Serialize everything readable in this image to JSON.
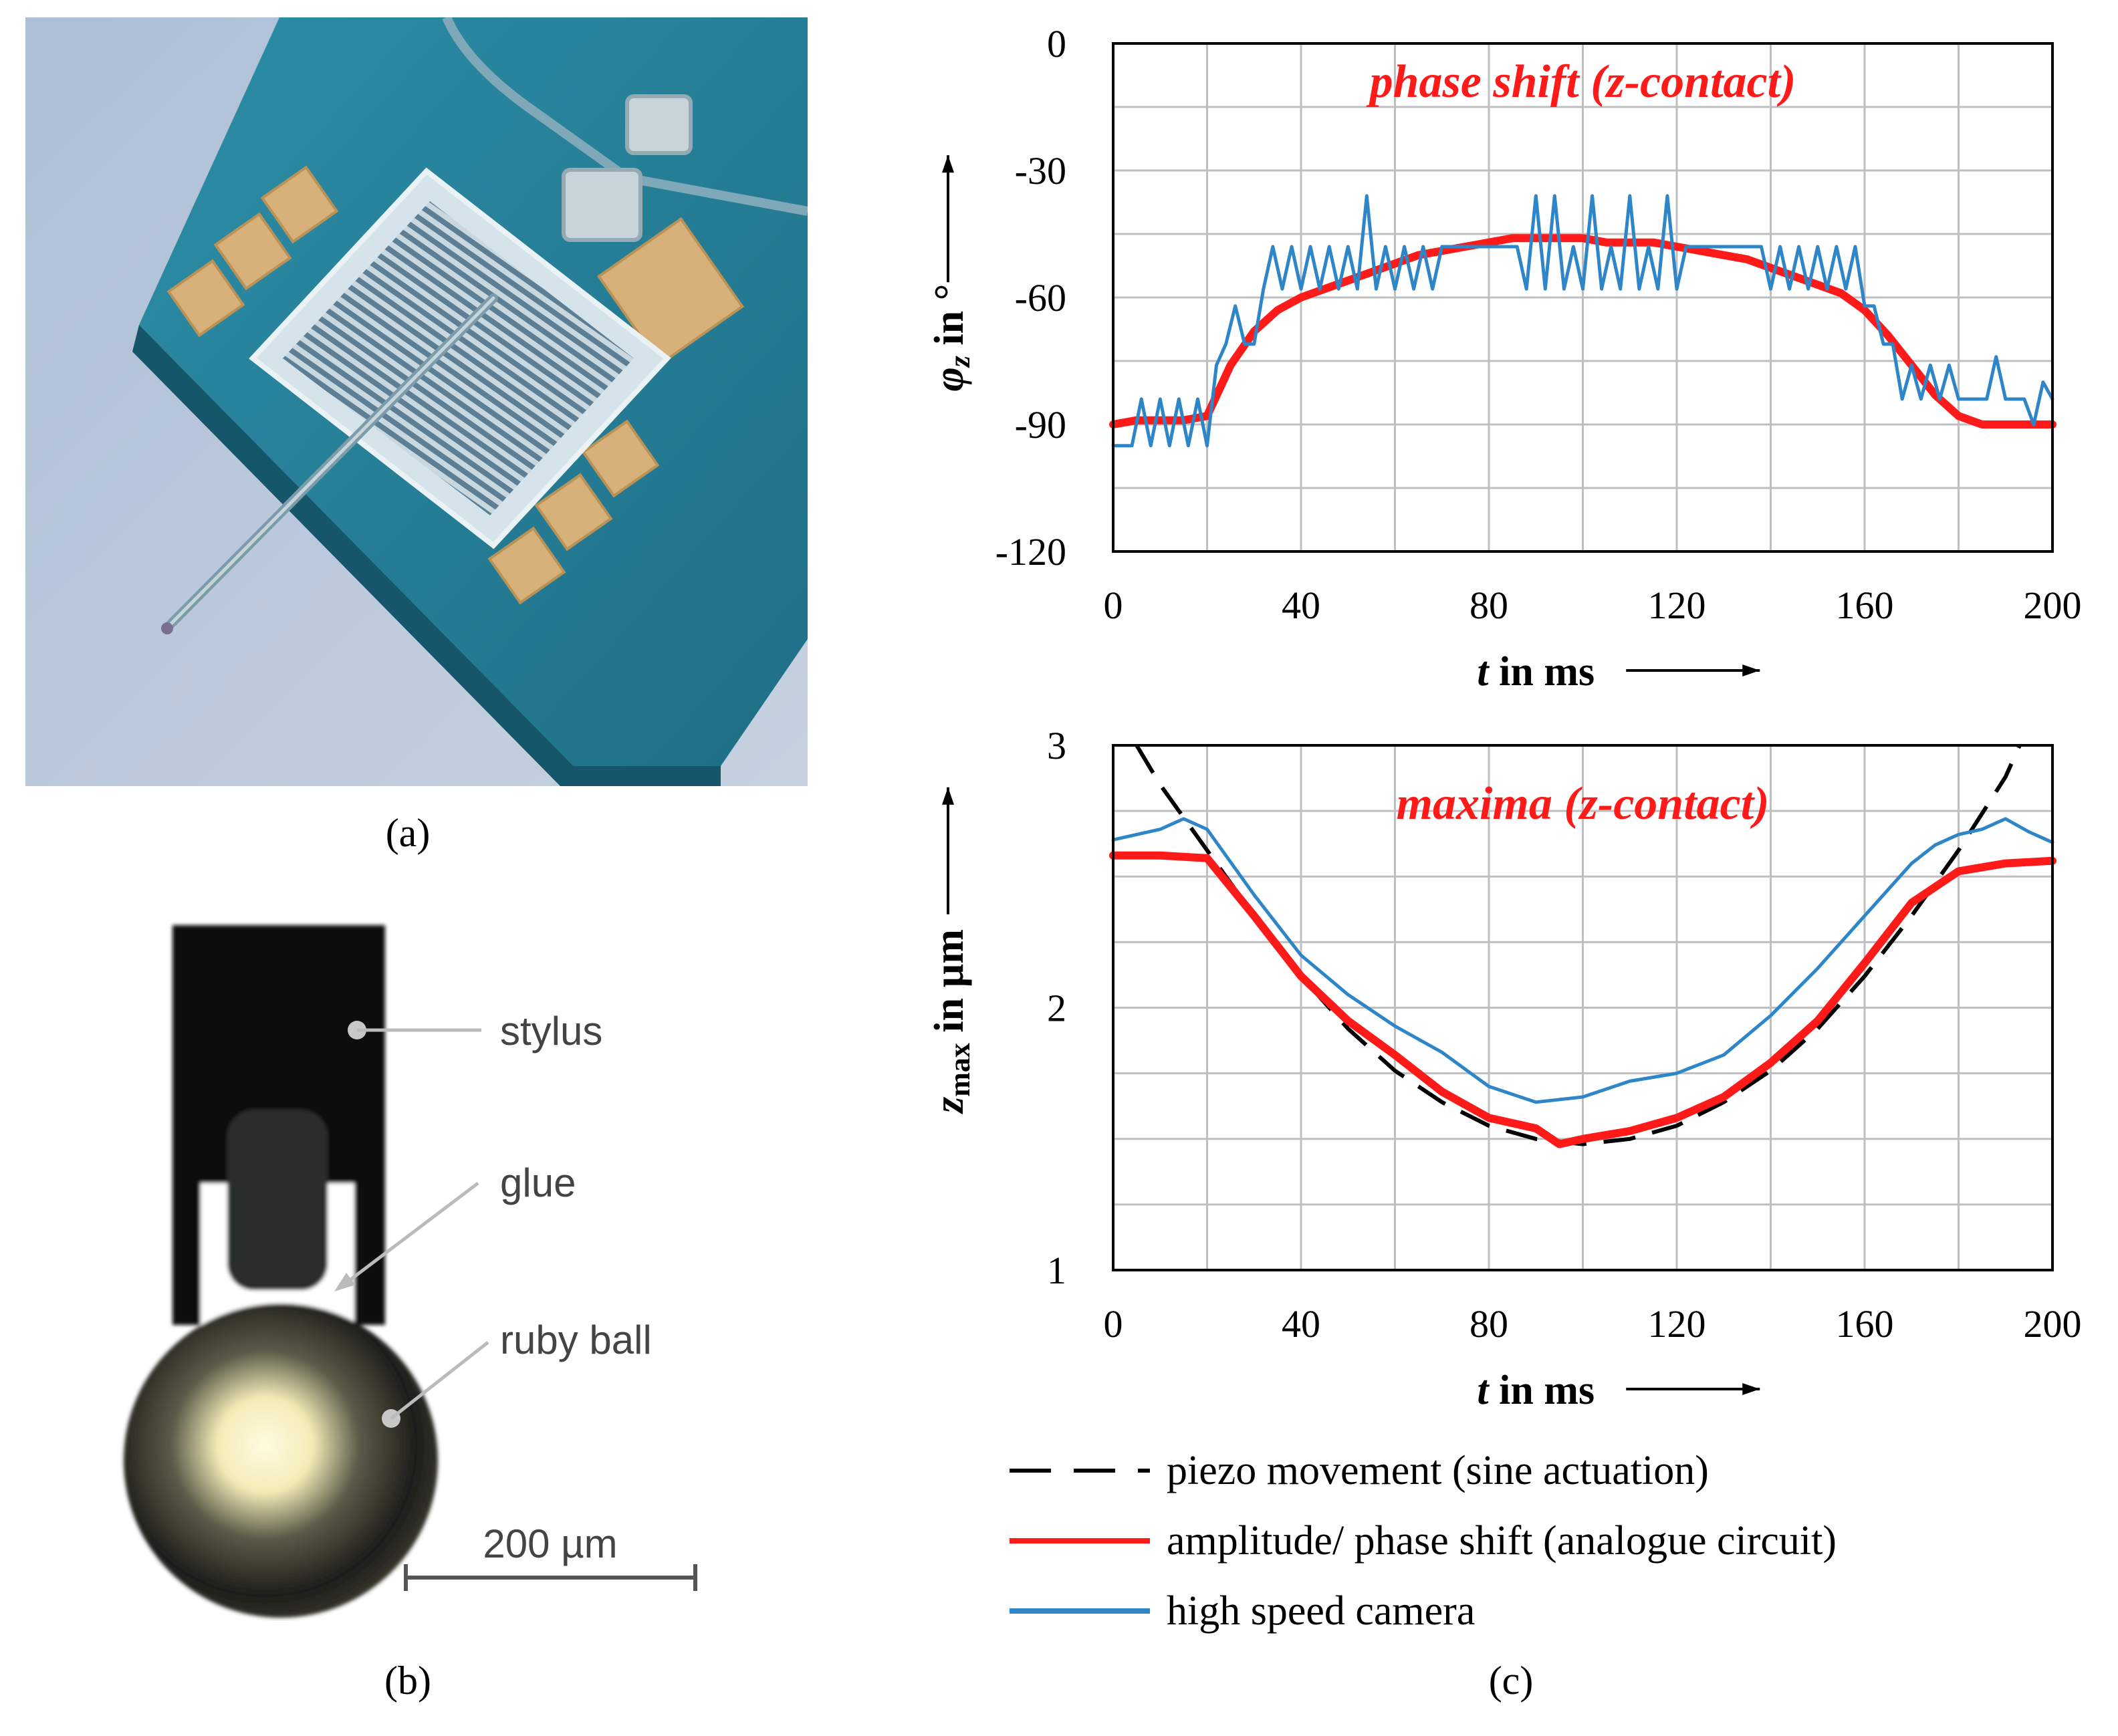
{
  "panels": {
    "a": "(a)",
    "b": "(b)",
    "c": "(c)"
  },
  "photo_b": {
    "labels": {
      "stylus": "stylus",
      "glue": "glue",
      "ruby": "ruby ball",
      "scale": "200 µm"
    }
  },
  "chart_data": [
    {
      "type": "line",
      "title": "phase shift (z-contact)",
      "xlabel_var": "t",
      "xlabel_rest": " in ms",
      "ylabel_var": "φ",
      "ylabel_sub": "z",
      "ylabel_rest": " in °",
      "xlim": [
        0,
        200
      ],
      "ylim": [
        -120,
        0
      ],
      "xticks": [
        "0",
        "40",
        "80",
        "120",
        "160",
        "200"
      ],
      "yticks": [
        "0",
        "-30",
        "-60",
        "-90",
        "-120"
      ],
      "grid": true,
      "series": [
        {
          "name": "amplitude/ phase shift (analogue circuit)",
          "color": "#ff1a1a",
          "x": [
            0,
            5,
            10,
            15,
            20,
            25,
            30,
            35,
            40,
            45,
            50,
            55,
            60,
            65,
            70,
            75,
            80,
            85,
            90,
            95,
            100,
            105,
            110,
            115,
            120,
            125,
            130,
            135,
            140,
            145,
            150,
            155,
            160,
            165,
            170,
            175,
            180,
            185,
            190,
            195,
            200
          ],
          "y": [
            -90,
            -89,
            -89,
            -89,
            -88,
            -76,
            -68,
            -63,
            -60,
            -58,
            -56,
            -54,
            -52,
            -50,
            -49,
            -48,
            -47,
            -46,
            -46,
            -46,
            -46,
            -47,
            -47,
            -47,
            -48,
            -49,
            -50,
            -51,
            -53,
            -55,
            -57,
            -59,
            -63,
            -69,
            -76,
            -83,
            -88,
            -90,
            -90,
            -90,
            -90
          ]
        },
        {
          "name": "high speed camera",
          "color": "#2e86c9",
          "x": [
            0,
            4,
            6,
            8,
            10,
            12,
            14,
            16,
            18,
            20,
            22,
            24,
            26,
            28,
            30,
            32,
            34,
            36,
            38,
            40,
            42,
            44,
            46,
            48,
            50,
            52,
            54,
            56,
            58,
            60,
            62,
            64,
            66,
            68,
            70,
            74,
            78,
            82,
            86,
            88,
            90,
            92,
            94,
            96,
            98,
            100,
            102,
            104,
            106,
            108,
            110,
            112,
            114,
            116,
            118,
            120,
            122,
            124,
            126,
            128,
            130,
            134,
            138,
            140,
            142,
            144,
            146,
            148,
            150,
            152,
            154,
            156,
            158,
            160,
            162,
            164,
            166,
            168,
            170,
            172,
            174,
            176,
            178,
            180,
            182,
            184,
            186,
            188,
            190,
            192,
            194,
            196,
            198,
            200
          ],
          "y": [
            -95,
            -95,
            -84,
            -95,
            -84,
            -95,
            -84,
            -95,
            -84,
            -95,
            -76,
            -71,
            -62,
            -71,
            -71,
            -58,
            -48,
            -58,
            -48,
            -58,
            -48,
            -58,
            -48,
            -58,
            -48,
            -58,
            -36,
            -58,
            -48,
            -58,
            -48,
            -58,
            -48,
            -58,
            -48,
            -48,
            -48,
            -48,
            -48,
            -58,
            -36,
            -58,
            -36,
            -58,
            -48,
            -58,
            -36,
            -58,
            -48,
            -58,
            -36,
            -58,
            -48,
            -58,
            -36,
            -58,
            -48,
            -48,
            -48,
            -48,
            -48,
            -48,
            -48,
            -58,
            -48,
            -58,
            -48,
            -58,
            -48,
            -58,
            -48,
            -58,
            -48,
            -62,
            -62,
            -71,
            -71,
            -84,
            -76,
            -84,
            -76,
            -84,
            -76,
            -84,
            -84,
            -84,
            -84,
            -74,
            -84,
            -84,
            -84,
            -90,
            -80,
            -84
          ]
        }
      ]
    },
    {
      "type": "line",
      "title": "maxima (z-contact)",
      "xlabel_var": "t",
      "xlabel_rest": " in ms",
      "ylabel_var": "z",
      "ylabel_sub": "max",
      "ylabel_rest": " in µm",
      "xlim": [
        0,
        200
      ],
      "ylim": [
        1,
        3
      ],
      "xticks": [
        "0",
        "40",
        "80",
        "120",
        "160",
        "200"
      ],
      "yticks": [
        "3",
        "2",
        "1"
      ],
      "grid": true,
      "series": [
        {
          "name": "piezo movement (sine actuation)",
          "color": "#000000",
          "dashed": true,
          "x": [
            5,
            10,
            20,
            30,
            40,
            50,
            60,
            70,
            80,
            90,
            100,
            110,
            120,
            130,
            140,
            150,
            160,
            170,
            180,
            190,
            193
          ],
          "y": [
            3.0,
            2.85,
            2.6,
            2.35,
            2.12,
            1.92,
            1.76,
            1.64,
            1.55,
            1.5,
            1.48,
            1.5,
            1.55,
            1.64,
            1.76,
            1.92,
            2.12,
            2.35,
            2.6,
            2.88,
            3.0
          ]
        },
        {
          "name": "amplitude/ phase shift (analogue circuit)",
          "color": "#ff1a1a",
          "x": [
            0,
            10,
            20,
            30,
            40,
            50,
            60,
            70,
            80,
            90,
            95,
            100,
            110,
            120,
            130,
            140,
            150,
            160,
            170,
            180,
            190,
            200
          ],
          "y": [
            2.58,
            2.58,
            2.57,
            2.35,
            2.12,
            1.95,
            1.82,
            1.68,
            1.58,
            1.54,
            1.48,
            1.5,
            1.53,
            1.58,
            1.66,
            1.79,
            1.95,
            2.17,
            2.4,
            2.52,
            2.55,
            2.56
          ]
        },
        {
          "name": "high speed camera",
          "color": "#2e86c9",
          "x": [
            0,
            10,
            15,
            20,
            30,
            40,
            50,
            60,
            70,
            80,
            90,
            100,
            110,
            120,
            130,
            140,
            150,
            160,
            170,
            175,
            180,
            185,
            190,
            195,
            200
          ],
          "y": [
            2.64,
            2.68,
            2.72,
            2.68,
            2.43,
            2.2,
            2.05,
            1.93,
            1.83,
            1.7,
            1.64,
            1.66,
            1.72,
            1.75,
            1.82,
            1.97,
            2.15,
            2.35,
            2.55,
            2.62,
            2.66,
            2.68,
            2.72,
            2.67,
            2.63
          ]
        }
      ]
    }
  ],
  "legend": [
    {
      "label": "piezo movement (sine actuation)",
      "color": "#000000",
      "dashed": true
    },
    {
      "label": "amplitude/ phase shift (analogue circuit)",
      "color": "#ff1a1a",
      "dashed": false
    },
    {
      "label": "high speed camera",
      "color": "#2e86c9",
      "dashed": false
    }
  ]
}
